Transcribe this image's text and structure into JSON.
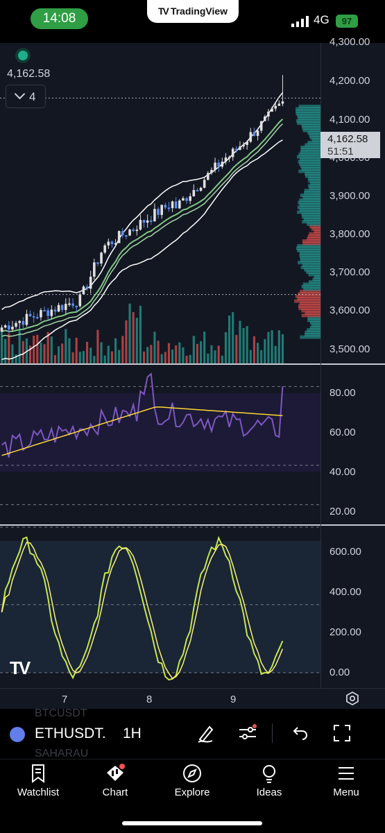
{
  "status_bar": {
    "time": "14:08",
    "brand": "TradingView",
    "network": "4G",
    "battery": "97"
  },
  "chart": {
    "current_price": "4,162.58",
    "collapse_count": "4",
    "last_price_label": "4,162.58",
    "countdown": "51:51",
    "price_ticks": [
      "4,300.00",
      "4,200.00",
      "4,100.00",
      "4,000.00",
      "3,900.00",
      "3,800.00",
      "3,700.00",
      "3,600.00",
      "3,500.00"
    ],
    "rsi_ticks": [
      "80.00",
      "60.00",
      "40.00",
      "20.00"
    ],
    "osc_ticks": [
      "600.00",
      "400.00",
      "200.00",
      "0.00"
    ],
    "time_ticks": [
      "7",
      "8",
      "9"
    ],
    "colors": {
      "bg": "#131722",
      "up": "#26a69a",
      "down": "#ef5350",
      "rsi": "#7e57c2",
      "rsi_ma": "#fdd835",
      "osc_k": "#c6e84c",
      "osc_d": "#fff176",
      "band": "#ffffff",
      "ema": "#81c784"
    }
  },
  "chart_data": [
    {
      "type": "line",
      "title": "ETHUSDT 1H",
      "x": [
        "7",
        "8",
        "9"
      ],
      "series": [],
      "ylim": [
        3500,
        4300
      ],
      "last": 4162.58
    },
    {
      "type": "line",
      "title": "",
      "ylim": [
        10,
        90
      ],
      "series": []
    },
    {
      "type": "line",
      "title": "",
      "ylim": [
        0,
        650
      ],
      "series": []
    }
  ],
  "symbol_bar": {
    "ghost_top": "BTCUSDT",
    "ghost_bottom": "SAHARAU",
    "symbol": "ETHUSDT.",
    "interval": "1H"
  },
  "nav": {
    "watchlist": "Watchlist",
    "chart": "Chart",
    "explore": "Explore",
    "ideas": "Ideas",
    "menu": "Menu"
  }
}
